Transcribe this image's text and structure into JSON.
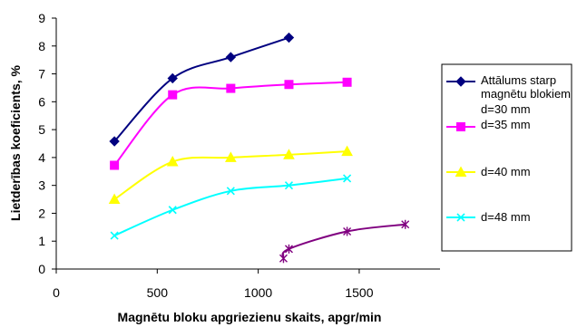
{
  "chart_data": {
    "type": "line",
    "title": "",
    "xlabel": "Magnētu bloku apgriezienu skaits, apgr/min",
    "ylabel": "Lietderības koeficients, %",
    "xlim": [
      0,
      1900
    ],
    "ylim": [
      0,
      9
    ],
    "x_ticks": [
      0,
      500,
      1000,
      1500
    ],
    "y_ticks": [
      0,
      1,
      2,
      3,
      4,
      5,
      6,
      7,
      8,
      9
    ],
    "grid": false,
    "legend_position": "right",
    "legend_header": [
      "Attālums starp",
      "magnētu blokiem"
    ],
    "series": [
      {
        "name": "d=30 mm",
        "color": "#000080",
        "marker": "diamond",
        "x": [
          288,
          576,
          864,
          1152
        ],
        "y": [
          4.58,
          6.84,
          7.6,
          8.3
        ]
      },
      {
        "name": "d=35 mm",
        "color": "#ff00ff",
        "marker": "square",
        "x": [
          288,
          576,
          864,
          1152,
          1440
        ],
        "y": [
          3.72,
          6.25,
          6.48,
          6.62,
          6.7
        ]
      },
      {
        "name": "d=40 mm",
        "color": "#ffff00",
        "marker": "triangle",
        "x": [
          288,
          576,
          864,
          1152,
          1440
        ],
        "y": [
          2.5,
          3.85,
          4.0,
          4.1,
          4.22
        ]
      },
      {
        "name": "d=48 mm",
        "color": "#00ffff",
        "marker": "x",
        "x": [
          288,
          576,
          864,
          1152,
          1440
        ],
        "y": [
          1.2,
          2.12,
          2.8,
          3.0,
          3.25
        ]
      },
      {
        "name": "",
        "color": "#800080",
        "marker": "star",
        "x": [
          1125,
          1152,
          1440,
          1728
        ],
        "y": [
          0.38,
          0.72,
          1.35,
          1.6
        ]
      }
    ]
  }
}
